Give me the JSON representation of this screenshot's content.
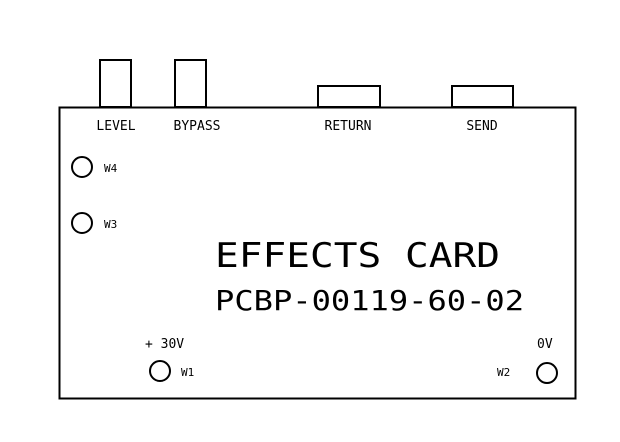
{
  "title": "EFFECTS CARD",
  "part_number": "PCBP-00119-60-02",
  "connectors": [
    {
      "label": "LEVEL"
    },
    {
      "label": "BYPASS"
    },
    {
      "label": "RETURN"
    },
    {
      "label": "SEND"
    }
  ],
  "terminals": [
    {
      "label": "W4"
    },
    {
      "label": "W3"
    },
    {
      "label": "W1",
      "voltage": "+ 30V"
    },
    {
      "label": "W2",
      "voltage": "0V"
    }
  ],
  "colors": {
    "line": "#000000",
    "background": "#ffffff"
  }
}
